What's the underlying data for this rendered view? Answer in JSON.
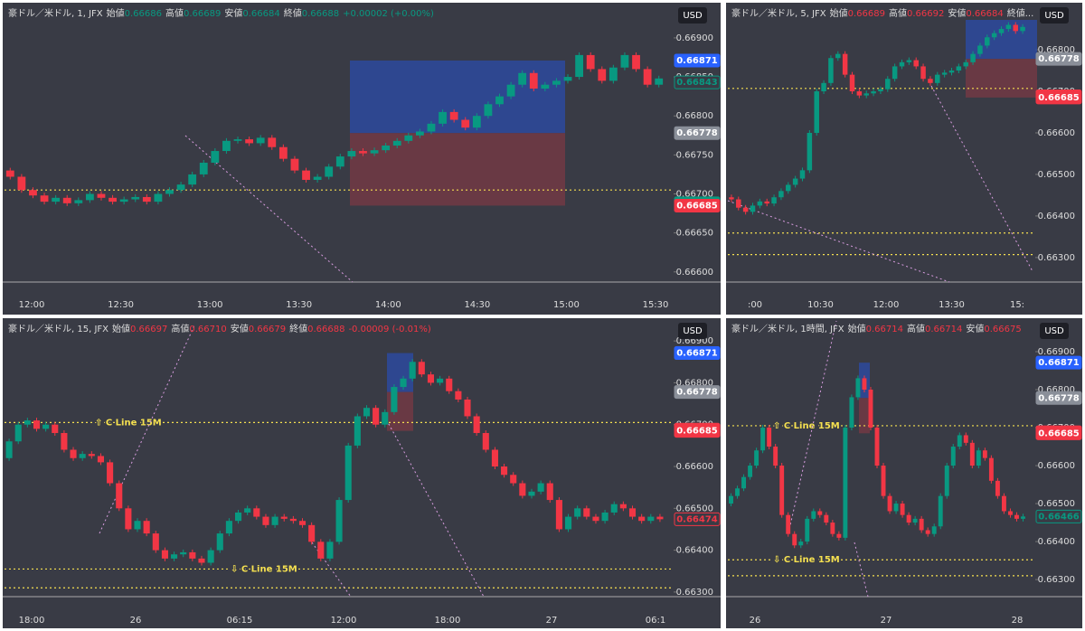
{
  "chart_data": [
    {
      "type": "candlestick",
      "header": {
        "symbol": "豪ドル／米ドル, 1, JFX",
        "fields": [
          {
            "label": "始値",
            "value": "0.66686"
          },
          {
            "label": "高値",
            "value": "0.66689"
          },
          {
            "label": "安値",
            "value": "0.66684"
          },
          {
            "label": "終値",
            "value": "0.66688"
          }
        ],
        "change": "+0.00002 (+0.00%)",
        "color": "#089981"
      },
      "currency": "USD",
      "ylim": [
        0.66587,
        0.66937
      ],
      "yticks": [
        {
          "value": 0.669,
          "label": "0.66900"
        },
        {
          "value": 0.6685,
          "label": "0.66850"
        },
        {
          "value": 0.668,
          "label": "0.66800"
        },
        {
          "value": 0.6675,
          "label": "0.66750"
        },
        {
          "value": 0.667,
          "label": "0.66700"
        },
        {
          "value": 0.6665,
          "label": "0.66650"
        },
        {
          "value": 0.666,
          "label": "0.66600"
        }
      ],
      "categories": [
        "12:00",
        "12:30",
        "13:00",
        "13:30",
        "14:00",
        "14:30",
        "15:00",
        "15:30"
      ],
      "open": 0.6673,
      "close": [
        0.66722,
        0.66705,
        0.66698,
        0.6669,
        0.66695,
        0.66688,
        0.66692,
        0.667,
        0.66695,
        0.6669,
        0.66693,
        0.66696,
        0.6669,
        0.667,
        0.66705,
        0.66712,
        0.66725,
        0.6674,
        0.66755,
        0.66768,
        0.6677,
        0.66765,
        0.66772,
        0.6676,
        0.66745,
        0.6673,
        0.66718,
        0.66722,
        0.66735,
        0.66748,
        0.66755,
        0.66752,
        0.66756,
        0.66762,
        0.66768,
        0.66775,
        0.6678,
        0.6679,
        0.66805,
        0.66795,
        0.66785,
        0.668,
        0.66815,
        0.66825,
        0.6684,
        0.66855,
        0.66835,
        0.6684,
        0.66845,
        0.6685,
        0.66878,
        0.6686,
        0.66845,
        0.66862,
        0.66878,
        0.6686,
        0.6684,
        0.66848
      ],
      "tags": [
        {
          "value": 0.66871,
          "color": "#2962ff"
        },
        {
          "value": 0.66843,
          "color": "outline-green"
        },
        {
          "value": 0.66778,
          "color": "#8a8f99"
        },
        {
          "value": 0.66688,
          "color": "#089981"
        },
        {
          "value": 0.66685,
          "color": "#f23645"
        }
      ],
      "levels": [
        {
          "value": 0.66705
        }
      ]
    },
    {
      "type": "candlestick",
      "header": {
        "symbol": "豪ドル／米ドル, 5, JFX",
        "fields": [
          {
            "label": "始値",
            "value": "0.66689"
          },
          {
            "label": "高値",
            "value": "0.66692"
          },
          {
            "label": "安値",
            "value": "0.66684"
          },
          {
            "label": "終値..."
          }
        ],
        "color": "#f23645"
      },
      "currency": "USD",
      "ylim": [
        0.66241,
        0.66898
      ],
      "yticks": [
        {
          "value": 0.668,
          "label": "0.66800"
        },
        {
          "value": 0.667,
          "label": "0.66700"
        },
        {
          "value": 0.666,
          "label": "0.66600"
        },
        {
          "value": 0.665,
          "label": "0.66500"
        },
        {
          "value": 0.664,
          "label": "0.66400"
        },
        {
          "value": 0.663,
          "label": "0.66300"
        }
      ],
      "categories": [
        ":00",
        "10:30",
        "12:00",
        "13:30",
        "15:"
      ],
      "open": 0.66445,
      "close": [
        0.6644,
        0.6642,
        0.6641,
        0.66425,
        0.66435,
        0.6643,
        0.66445,
        0.6646,
        0.66475,
        0.6649,
        0.6651,
        0.666,
        0.667,
        0.6672,
        0.6678,
        0.6679,
        0.6674,
        0.667,
        0.6669,
        0.66695,
        0.667,
        0.66705,
        0.6673,
        0.6676,
        0.6677,
        0.66775,
        0.6676,
        0.6673,
        0.6672,
        0.6674,
        0.66745,
        0.6675,
        0.6676,
        0.6677,
        0.6679,
        0.6681,
        0.6683,
        0.6684,
        0.6685,
        0.6686,
        0.66845,
        0.66855
      ],
      "tags": [
        {
          "value": 0.66778,
          "color": "#8a8f99"
        },
        {
          "value": 0.66688,
          "color": "#f23645"
        },
        {
          "value": 0.66685,
          "color": "#f23645"
        }
      ],
      "levels": [
        {
          "value": 0.66707
        },
        {
          "value": 0.66359
        },
        {
          "value": 0.66307
        }
      ]
    },
    {
      "type": "candlestick",
      "header": {
        "symbol": "豪ドル／米ドル, 15, JFX",
        "fields": [
          {
            "label": "始値",
            "value": "0.66697"
          },
          {
            "label": "高値",
            "value": "0.66710"
          },
          {
            "label": "安値",
            "value": "0.66679"
          },
          {
            "label": "終値",
            "value": "0.66688"
          }
        ],
        "change": "-0.00009 (-0.01%)",
        "color": "#f23645"
      },
      "currency": "USD",
      "ylim": [
        0.66289,
        0.66937
      ],
      "yticks": [
        {
          "value": 0.669,
          "label": "0.66900"
        },
        {
          "value": 0.668,
          "label": "0.66800"
        },
        {
          "value": 0.667,
          "label": "0.66700"
        },
        {
          "value": 0.666,
          "label": "0.66600"
        },
        {
          "value": 0.665,
          "label": "0.66500"
        },
        {
          "value": 0.664,
          "label": "0.66400"
        },
        {
          "value": 0.663,
          "label": "0.66300"
        }
      ],
      "categories": [
        "18:00",
        "26",
        "06:15",
        "12:00",
        "18:00",
        "27",
        "06:1"
      ],
      "open": 0.6662,
      "close": [
        0.6666,
        0.667,
        0.6671,
        0.6669,
        0.667,
        0.6668,
        0.6664,
        0.6662,
        0.6663,
        0.66625,
        0.6661,
        0.6656,
        0.665,
        0.6645,
        0.6647,
        0.6644,
        0.664,
        0.6638,
        0.6639,
        0.66395,
        0.6638,
        0.6637,
        0.664,
        0.6644,
        0.6647,
        0.6649,
        0.665,
        0.6648,
        0.6646,
        0.6648,
        0.66475,
        0.6647,
        0.6646,
        0.6642,
        0.6638,
        0.6642,
        0.6652,
        0.6665,
        0.6672,
        0.6674,
        0.667,
        0.6673,
        0.6679,
        0.6681,
        0.6685,
        0.6682,
        0.668,
        0.6681,
        0.6678,
        0.6676,
        0.6672,
        0.6668,
        0.6664,
        0.666,
        0.6658,
        0.6656,
        0.6653,
        0.6654,
        0.6656,
        0.6652,
        0.6645,
        0.6648,
        0.665,
        0.6648,
        0.6647,
        0.6649,
        0.6651,
        0.665,
        0.6648,
        0.6647,
        0.6648,
        0.66474
      ],
      "tags": [
        {
          "value": 0.66871,
          "color": "#2962ff"
        },
        {
          "value": 0.66778,
          "color": "#8a8f99"
        },
        {
          "value": 0.66688,
          "color": "#f23645"
        },
        {
          "value": 0.66685,
          "color": "#f23645"
        },
        {
          "value": 0.66474,
          "color": "outline-red"
        }
      ],
      "levels": [
        {
          "value": 0.66705,
          "label": "⇧ C Line 15M"
        },
        {
          "value": 0.66355,
          "label": "⇩ C Line 15M"
        },
        {
          "value": 0.6631
        }
      ]
    },
    {
      "type": "candlestick",
      "header": {
        "symbol": "豪ドル／米ドル, 1時間, JFX",
        "fields": [
          {
            "label": "始値",
            "value": "0.66714"
          },
          {
            "label": "高値",
            "value": "0.66714"
          },
          {
            "label": "安値",
            "value": "0.66675"
          }
        ],
        "color": "#f23645"
      },
      "currency": "USD",
      "ylim": [
        0.66255,
        0.66969
      ],
      "yticks": [
        {
          "value": 0.669,
          "label": "0.66900"
        },
        {
          "value": 0.668,
          "label": "0.66800"
        },
        {
          "value": 0.667,
          "label": "0.66700"
        },
        {
          "value": 0.666,
          "label": "0.66600"
        },
        {
          "value": 0.665,
          "label": "0.66500"
        },
        {
          "value": 0.664,
          "label": "0.66400"
        },
        {
          "value": 0.663,
          "label": "0.66300"
        }
      ],
      "categories": [
        "26",
        "27",
        "28"
      ],
      "open": 0.665,
      "close": [
        0.6652,
        0.6654,
        0.6657,
        0.666,
        0.6664,
        0.667,
        0.6665,
        0.666,
        0.6647,
        0.6642,
        0.6639,
        0.664,
        0.6646,
        0.6648,
        0.6647,
        0.6645,
        0.6642,
        0.6641,
        0.667,
        0.6678,
        0.6683,
        0.668,
        0.667,
        0.666,
        0.6652,
        0.6648,
        0.665,
        0.6647,
        0.6645,
        0.6646,
        0.6643,
        0.6642,
        0.6644,
        0.6652,
        0.666,
        0.6665,
        0.6668,
        0.6666,
        0.666,
        0.6664,
        0.6662,
        0.6656,
        0.6652,
        0.6648,
        0.6647,
        0.6646,
        0.66466
      ],
      "tags": [
        {
          "value": 0.66871,
          "color": "#2962ff"
        },
        {
          "value": 0.66778,
          "color": "#8a8f99"
        },
        {
          "value": 0.66688,
          "color": "#f23645"
        },
        {
          "value": 0.66685,
          "color": "#f23645"
        },
        {
          "value": 0.66466,
          "color": "outline-green"
        }
      ],
      "levels": [
        {
          "value": 0.66705,
          "label": "⇧ C Line 15M"
        },
        {
          "value": 0.66352,
          "label": "⇩ C Line 15M"
        },
        {
          "value": 0.6631
        }
      ]
    }
  ]
}
